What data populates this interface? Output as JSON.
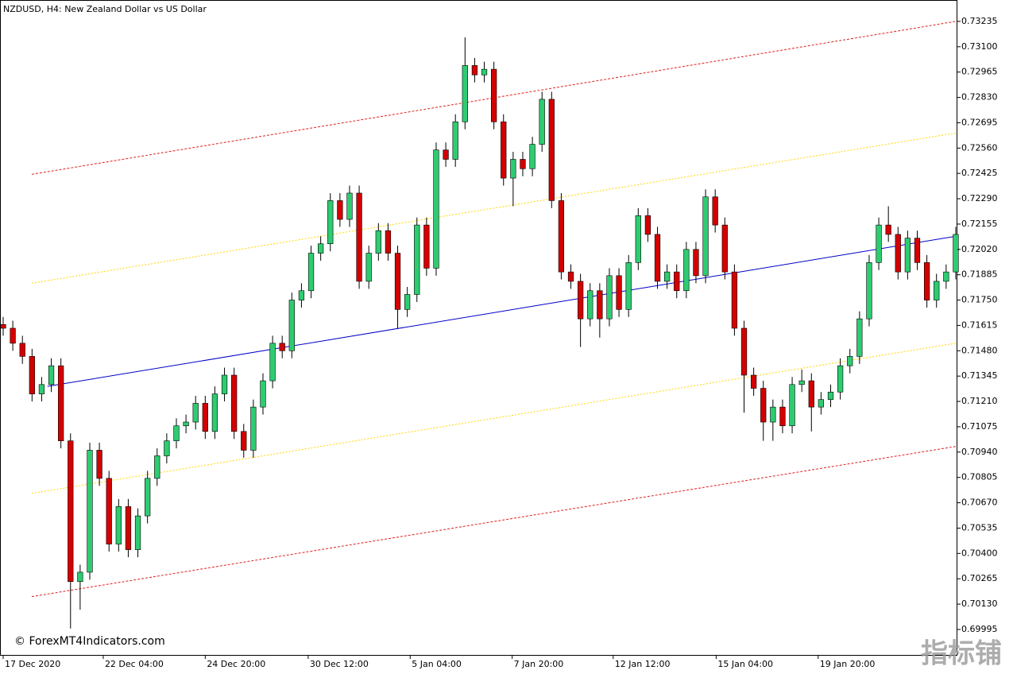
{
  "chart_data": {
    "type": "candlestick",
    "title": "NZDUSD, H4:  New Zealand Dollar vs US Dollar",
    "watermark": "© ForexMT4Indicators.com",
    "watermark2": "指标铺",
    "bull_color": "#2ecc71",
    "bear_color": "#d40000",
    "ylim": [
      0.69855,
      0.73349
    ],
    "xlim": [
      -0.33,
      99.17
    ],
    "yticks": [
      {
        "value": 0.69995,
        "label": "0.69995"
      },
      {
        "value": 0.7013,
        "label": "0.70130"
      },
      {
        "value": 0.70265,
        "label": "0.70265"
      },
      {
        "value": 0.704,
        "label": "0.70400"
      },
      {
        "value": 0.70535,
        "label": "0.70535"
      },
      {
        "value": 0.7067,
        "label": "0.70670"
      },
      {
        "value": 0.70805,
        "label": "0.70805"
      },
      {
        "value": 0.7094,
        "label": "0.70940"
      },
      {
        "value": 0.71075,
        "label": "0.71075"
      },
      {
        "value": 0.7121,
        "label": "0.71210"
      },
      {
        "value": 0.71345,
        "label": "0.71345"
      },
      {
        "value": 0.7148,
        "label": "0.71480"
      },
      {
        "value": 0.71615,
        "label": "0.71615"
      },
      {
        "value": 0.7175,
        "label": "0.71750"
      },
      {
        "value": 0.71885,
        "label": "0.71885"
      },
      {
        "value": 0.7202,
        "label": "0.72020"
      },
      {
        "value": 0.72155,
        "label": "0.72155"
      },
      {
        "value": 0.7229,
        "label": "0.72290"
      },
      {
        "value": 0.72425,
        "label": "0.72425"
      },
      {
        "value": 0.7256,
        "label": "0.72560"
      },
      {
        "value": 0.72695,
        "label": "0.72695"
      },
      {
        "value": 0.7283,
        "label": "0.72830"
      },
      {
        "value": 0.72965,
        "label": "0.72965"
      },
      {
        "value": 0.731,
        "label": "0.73100"
      },
      {
        "value": 0.73235,
        "label": "0.73235"
      }
    ],
    "xticks": [
      {
        "value": 0,
        "label": "17 Dec 2020"
      },
      {
        "value": 10.4,
        "label": "22 Dec 04:00"
      },
      {
        "value": 21.0,
        "label": "24 Dec 20:00"
      },
      {
        "value": 31.7,
        "label": "30 Dec 12:00"
      },
      {
        "value": 42.3,
        "label": "5 Jan 04:00"
      },
      {
        "value": 52.9,
        "label": "7 Jan 20:00"
      },
      {
        "value": 63.4,
        "label": "12 Jan 12:00"
      },
      {
        "value": 74.1,
        "label": "15 Jan 04:00"
      },
      {
        "value": 84.7,
        "label": "19 Jan 20:00"
      }
    ],
    "open": [
      0.7162,
      0.716,
      0.7152,
      0.7145,
      0.7125,
      0.713,
      0.714,
      0.71,
      0.7025,
      0.703,
      0.7095,
      0.708,
      0.7045,
      0.7065,
      0.7042,
      0.706,
      0.708,
      0.7092,
      0.71,
      0.7108,
      0.711,
      0.712,
      0.7105,
      0.7125,
      0.7135,
      0.7105,
      0.7095,
      0.7118,
      0.7132,
      0.7152,
      0.7148,
      0.7175,
      0.718,
      0.72,
      0.7205,
      0.7228,
      0.7218,
      0.7232,
      0.7185,
      0.72,
      0.7212,
      0.72,
      0.717,
      0.7178,
      0.7215,
      0.7192,
      0.7255,
      0.725,
      0.727,
      0.73,
      0.7295,
      0.7298,
      0.727,
      0.724,
      0.725,
      0.7245,
      0.7258,
      0.7282,
      0.7228,
      0.719,
      0.7185,
      0.7165,
      0.718,
      0.7165,
      0.7188,
      0.717,
      0.7195,
      0.722,
      0.721,
      0.7185,
      0.719,
      0.718,
      0.7202,
      0.7188,
      0.723,
      0.7215,
      0.719,
      0.716,
      0.7135,
      0.7128,
      0.711,
      0.7118,
      0.7108,
      0.713,
      0.7132,
      0.7118,
      0.7122,
      0.7126,
      0.714,
      0.7145,
      0.7165,
      0.7195,
      0.7215,
      0.721,
      0.719,
      0.7208,
      0.7195,
      0.7175,
      0.7185,
      0.719
    ],
    "high": [
      0.7166,
      0.7164,
      0.7156,
      0.7149,
      0.7134,
      0.7144,
      0.7144,
      0.7104,
      0.7034,
      0.7099,
      0.7099,
      0.7084,
      0.7069,
      0.7069,
      0.7064,
      0.7084,
      0.7096,
      0.7104,
      0.7112,
      0.7114,
      0.7124,
      0.7124,
      0.7129,
      0.7139,
      0.7139,
      0.7109,
      0.7122,
      0.7136,
      0.7156,
      0.7156,
      0.7179,
      0.7184,
      0.7204,
      0.7209,
      0.7232,
      0.7232,
      0.7236,
      0.7236,
      0.7204,
      0.7216,
      0.7216,
      0.7204,
      0.7182,
      0.7219,
      0.7219,
      0.7259,
      0.7259,
      0.7274,
      0.7315,
      0.7304,
      0.7302,
      0.7302,
      0.7274,
      0.7254,
      0.7254,
      0.7262,
      0.7286,
      0.7286,
      0.7232,
      0.7194,
      0.7189,
      0.7184,
      0.7184,
      0.7192,
      0.7192,
      0.7199,
      0.7224,
      0.7224,
      0.7214,
      0.7194,
      0.7194,
      0.7206,
      0.7206,
      0.7234,
      0.7234,
      0.7219,
      0.7194,
      0.7164,
      0.7139,
      0.7132,
      0.7122,
      0.7122,
      0.7134,
      0.7138,
      0.7136,
      0.7126,
      0.713,
      0.7144,
      0.7149,
      0.7169,
      0.7199,
      0.7219,
      0.7225,
      0.7214,
      0.7212,
      0.7212,
      0.7199,
      0.7189,
      0.7194,
      0.7214
    ],
    "low": [
      0.7156,
      0.7148,
      0.7141,
      0.7121,
      0.7121,
      0.7126,
      0.7096,
      0.7,
      0.701,
      0.7026,
      0.7076,
      0.7041,
      0.7041,
      0.7038,
      0.7038,
      0.7056,
      0.7076,
      0.7088,
      0.7096,
      0.7104,
      0.7106,
      0.7101,
      0.7101,
      0.7121,
      0.7101,
      0.7091,
      0.7091,
      0.7114,
      0.7128,
      0.7144,
      0.7144,
      0.7171,
      0.7176,
      0.7196,
      0.7201,
      0.7214,
      0.7214,
      0.7181,
      0.7181,
      0.7196,
      0.7196,
      0.716,
      0.7166,
      0.7174,
      0.7188,
      0.7188,
      0.7246,
      0.7246,
      0.7266,
      0.7291,
      0.7291,
      0.7266,
      0.7236,
      0.7225,
      0.7241,
      0.7241,
      0.7254,
      0.7224,
      0.7186,
      0.7181,
      0.715,
      0.7161,
      0.7155,
      0.7161,
      0.7166,
      0.7166,
      0.7191,
      0.7206,
      0.7181,
      0.7181,
      0.7176,
      0.7176,
      0.7184,
      0.7184,
      0.7211,
      0.7186,
      0.7156,
      0.7115,
      0.7124,
      0.71,
      0.71,
      0.7104,
      0.7104,
      0.7126,
      0.7105,
      0.7114,
      0.7118,
      0.7122,
      0.7136,
      0.7141,
      0.7161,
      0.7191,
      0.7206,
      0.7186,
      0.7186,
      0.7191,
      0.7171,
      0.7171,
      0.7181,
      0.7186
    ],
    "close": [
      0.716,
      0.7152,
      0.7145,
      0.7125,
      0.713,
      0.714,
      0.71,
      0.7025,
      0.703,
      0.7095,
      0.708,
      0.7045,
      0.7065,
      0.7042,
      0.706,
      0.708,
      0.7092,
      0.71,
      0.7108,
      0.711,
      0.712,
      0.7105,
      0.7125,
      0.7135,
      0.7105,
      0.7095,
      0.7118,
      0.7132,
      0.7152,
      0.7148,
      0.7175,
      0.718,
      0.72,
      0.7205,
      0.7228,
      0.7218,
      0.7232,
      0.7185,
      0.72,
      0.7212,
      0.72,
      0.717,
      0.7178,
      0.7215,
      0.7192,
      0.7255,
      0.725,
      0.727,
      0.73,
      0.7295,
      0.7298,
      0.727,
      0.724,
      0.725,
      0.7245,
      0.7258,
      0.7282,
      0.7228,
      0.719,
      0.7185,
      0.7165,
      0.718,
      0.7165,
      0.7188,
      0.717,
      0.7195,
      0.722,
      0.721,
      0.7185,
      0.719,
      0.718,
      0.7202,
      0.7188,
      0.723,
      0.7215,
      0.719,
      0.716,
      0.7135,
      0.7128,
      0.711,
      0.7118,
      0.7108,
      0.713,
      0.7132,
      0.7118,
      0.7122,
      0.7126,
      0.714,
      0.7145,
      0.7165,
      0.7195,
      0.7215,
      0.721,
      0.719,
      0.7208,
      0.7195,
      0.7175,
      0.7185,
      0.719,
      0.721
    ],
    "lines": [
      {
        "color": "#e02020",
        "style": "dashed",
        "x": [
          2.97,
          99.0
        ],
        "values": [
          0.7242,
          0.73235
        ]
      },
      {
        "color": "#ffd700",
        "style": "dotted",
        "x": [
          2.97,
          99.0
        ],
        "values": [
          0.7184,
          0.7264
        ]
      },
      {
        "color": "#0000c8",
        "style": "solid",
        "x": [
          4.6,
          99.0
        ],
        "values": [
          0.7129,
          0.7209
        ]
      },
      {
        "color": "#ffd700",
        "style": "dotted",
        "x": [
          2.97,
          99.0
        ],
        "values": [
          0.7072,
          0.7152
        ]
      },
      {
        "color": "#e02020",
        "style": "dashed",
        "x": [
          2.97,
          99.0
        ],
        "values": [
          0.7017,
          0.7097
        ]
      }
    ]
  }
}
